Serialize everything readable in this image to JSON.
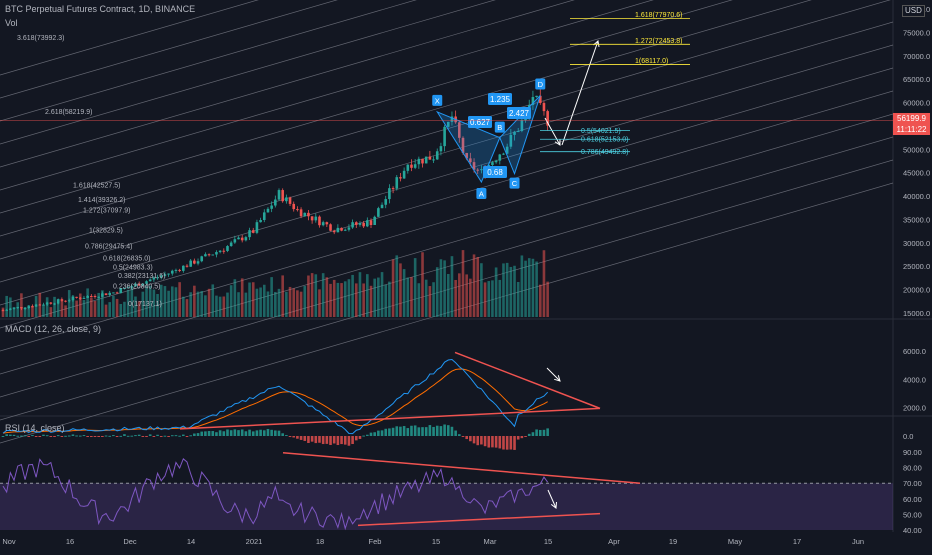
{
  "header": {
    "title": "BTC Perpetual Futures Contract, 1D, BINANCE",
    "vol_label": "Vol",
    "macd_label": "MACD (12, 26, close, 9)",
    "rsi_label": "RSI (14, close)"
  },
  "price_tag": {
    "value": "56199.9",
    "countdown": "11:11:22"
  },
  "currency": "USD",
  "colors": {
    "background": "#131722",
    "up": "#26a69a",
    "down": "#ef5350",
    "macd": "#2196f3",
    "signal": "#ff6d00",
    "rsi": "#7e57c2",
    "trendline": "#ef5350",
    "fib_yellow": "#ffeb3b",
    "fib_cyan": "#4dd0e1",
    "harmonic_label": "#2196f3"
  },
  "chart_data": [
    {
      "type": "candlestick",
      "title": "BTC Perpetual Futures Contract, 1D, BINANCE",
      "y_axis": [
        "80000.0",
        "75000.0",
        "70000.0",
        "65000.0",
        "60000.0",
        "55000.0",
        "50000.0",
        "45000.0",
        "40000.0",
        "35000.0",
        "30000.0",
        "25000.0",
        "20000.0",
        "15000.0"
      ],
      "x_axis": [
        "Nov",
        "16",
        "Dec",
        "14",
        "2021",
        "18",
        "Feb",
        "15",
        "Mar",
        "15",
        "Apr",
        "19",
        "May",
        "17",
        "Jun"
      ],
      "ylim": [
        13000,
        81000
      ],
      "harmonic_points": [
        {
          "label": "X",
          "price": 58000
        },
        {
          "label": "A",
          "price": 43000
        },
        {
          "label": "B",
          "price": 52500
        },
        {
          "label": "C",
          "price": 44800
        },
        {
          "label": "D",
          "price": 61500
        }
      ],
      "harmonic_ratios": [
        "1.235",
        "0.627",
        "2.427",
        "0.68"
      ],
      "fib_extension": [
        {
          "label": "1.618(77970.6)",
          "price": 77970.6
        },
        {
          "label": "1.272(72453.8)",
          "price": 72453.8
        },
        {
          "label": "1(68117.0)",
          "price": 68117.0
        }
      ],
      "fib_retracement_recent": [
        {
          "label": "0.5(54021.5)",
          "price": 54021.5
        },
        {
          "label": "0.618(52153.0)",
          "price": 52153.0
        },
        {
          "label": "0.786(49492.8)",
          "price": 49492.8
        }
      ],
      "fib_channel_labels": [
        {
          "label": "3.618(73992.3)",
          "price": 73992.3
        },
        {
          "label": "2.618(58219.9)",
          "price": 58219.9
        },
        {
          "label": "1.618(42527.5)",
          "price": 42527.5
        },
        {
          "label": "1.414(39326.2)",
          "price": 39326.2
        },
        {
          "label": "1.272(37097.9)",
          "price": 37097.9
        },
        {
          "label": "1(32829.5)",
          "price": 32829.5
        },
        {
          "label": "0.786(29475.4)",
          "price": 29475.4
        },
        {
          "label": "0.618(26835.0)",
          "price": 26835.0
        },
        {
          "label": "0.5(24983.3)",
          "price": 24983.3
        },
        {
          "label": "0.382(23131.6)",
          "price": 23131.6
        },
        {
          "label": "0.236(20840.5)",
          "price": 20840.5
        },
        {
          "label": "0(17137.1)",
          "price": 17137.1
        }
      ]
    },
    {
      "type": "line",
      "title": "MACD (12, 26, close, 9)",
      "y_axis": [
        "6000.0",
        "4000.0",
        "2000.0",
        "0.0"
      ],
      "ylim": [
        -300,
        6300
      ]
    },
    {
      "type": "line",
      "title": "RSI (14, close)",
      "y_axis": [
        "90.00",
        "80.00",
        "70.00",
        "60.00",
        "50.00",
        "40.00"
      ],
      "ylim": [
        38,
        92
      ],
      "reference_level": 70
    }
  ]
}
